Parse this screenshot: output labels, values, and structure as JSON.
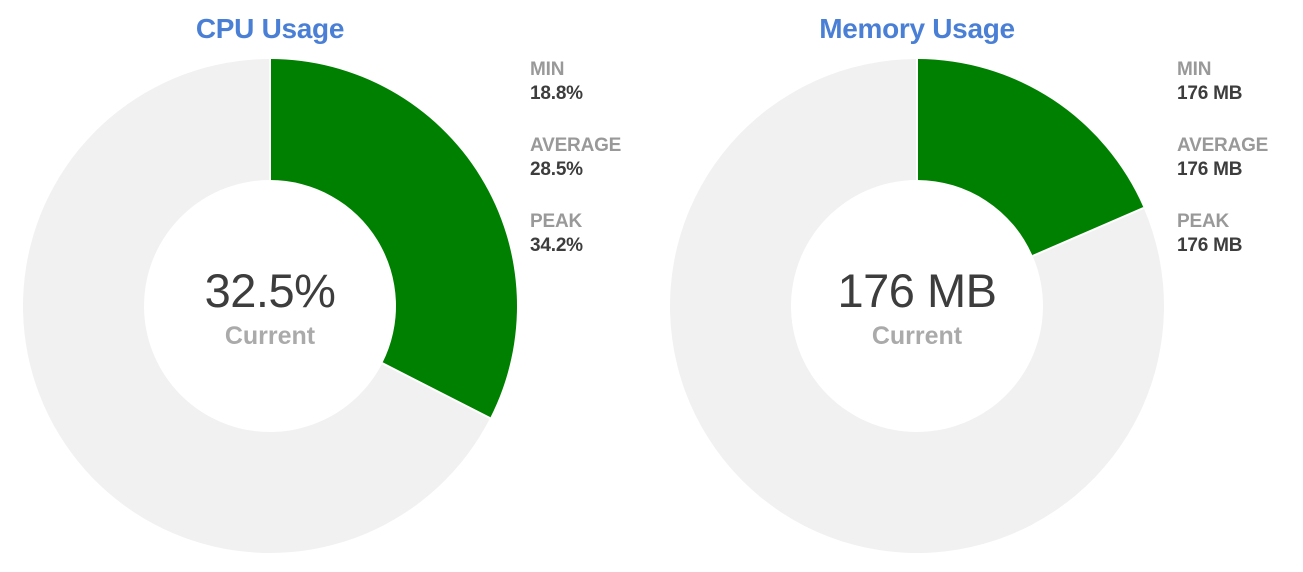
{
  "colors": {
    "title": "#4a7fd6",
    "used": "#008000",
    "remaining": "#f1f1f1",
    "label": "#999999",
    "value": "#3d3d3d",
    "caption": "#aaaaaa"
  },
  "chart_data": [
    {
      "type": "pie",
      "title": "CPU Usage",
      "used_percent": 32.5,
      "center_value": "32.5%",
      "center_caption": "Current",
      "stats": [
        {
          "label": "MIN",
          "value": "18.8%"
        },
        {
          "label": "AVERAGE",
          "value": "28.5%"
        },
        {
          "label": "PEAK",
          "value": "34.2%"
        }
      ]
    },
    {
      "type": "pie",
      "title": "Memory Usage",
      "used_percent": 18.5,
      "center_value": "176 MB",
      "center_caption": "Current",
      "stats": [
        {
          "label": "MIN",
          "value": "176 MB"
        },
        {
          "label": "AVERAGE",
          "value": "176 MB"
        },
        {
          "label": "PEAK",
          "value": "176 MB"
        }
      ]
    }
  ]
}
